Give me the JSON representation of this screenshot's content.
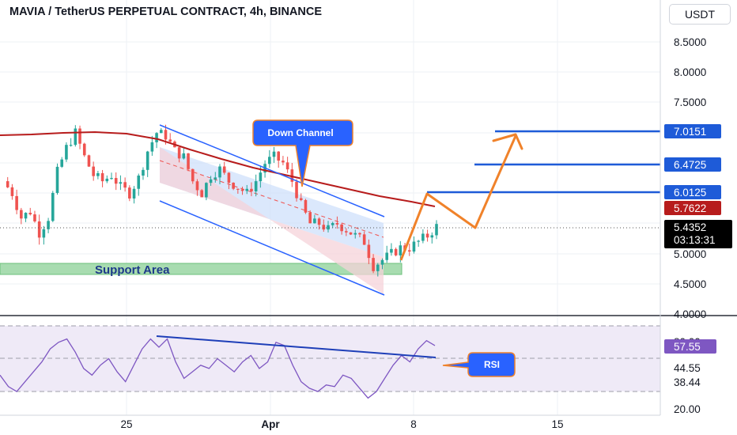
{
  "header": {
    "title": "MAVIA / TetherUS PERPETUAL CONTRACT, 4h, BINANCE"
  },
  "toolbar": {
    "currency_label": "USDT"
  },
  "chart_data": [
    {
      "type": "candlestick",
      "title": "MAVIA / TetherUS PERPETUAL CONTRACT, 4h, BINANCE",
      "x_tick_labels": [
        "25",
        "Apr",
        "8",
        "15"
      ],
      "y_tick_labels": [
        "8.5000",
        "8.0000",
        "7.5000",
        "5.0000",
        "4.5000",
        "4.0000"
      ],
      "ylim": [
        4.0,
        8.8
      ],
      "close_path": [
        6.2,
        6.0,
        5.6,
        5.7,
        5.35,
        5.6,
        6.35,
        6.75,
        7.0,
        6.6,
        6.3,
        6.2,
        6.3,
        6.1,
        6.0,
        6.25,
        6.7,
        7.0,
        6.95,
        6.7,
        6.6,
        6.2,
        6.0,
        6.3,
        6.4,
        6.2,
        6.1,
        6.0,
        6.2,
        6.5,
        6.6,
        6.5,
        6.2,
        5.8,
        5.5,
        5.5,
        5.4,
        5.5,
        5.4,
        5.3,
        5.2,
        4.8,
        4.9,
        5.0,
        5.1,
        5.1,
        5.2,
        5.3,
        5.45
      ],
      "moving_average": {
        "current_value": "5.7622",
        "color": "#b71c1c"
      },
      "last_price": {
        "value": "5.4352",
        "countdown": "03:13:31"
      },
      "price_levels": [
        {
          "value": "7.0151",
          "color": "#1e5bd8"
        },
        {
          "value": "6.4725",
          "color": "#1e5bd8"
        },
        {
          "value": "6.0125",
          "color": "#1e5bd8"
        }
      ],
      "annotations": {
        "down_channel": "Down Channel",
        "support_area": "Support Area"
      },
      "colors": {
        "up": "#26a69a",
        "down": "#ef5350",
        "projection": "#f0822a"
      }
    },
    {
      "type": "line",
      "name": "RSI",
      "y_tick_labels": [
        "20.00",
        "38.44",
        "44.55",
        "57.55"
      ],
      "current_value": "57.55",
      "values": [
        40,
        33,
        30,
        36,
        42,
        48,
        56,
        60,
        62,
        54,
        44,
        40,
        46,
        50,
        42,
        36,
        46,
        56,
        62,
        57,
        62,
        48,
        38,
        42,
        46,
        44,
        50,
        46,
        42,
        48,
        52,
        44,
        48,
        60,
        58,
        46,
        36,
        32,
        30,
        34,
        33,
        40,
        38,
        32,
        26,
        30,
        38,
        46,
        52,
        48,
        56,
        61,
        58
      ],
      "annotation": "RSI",
      "color": "#7e57c2"
    }
  ]
}
